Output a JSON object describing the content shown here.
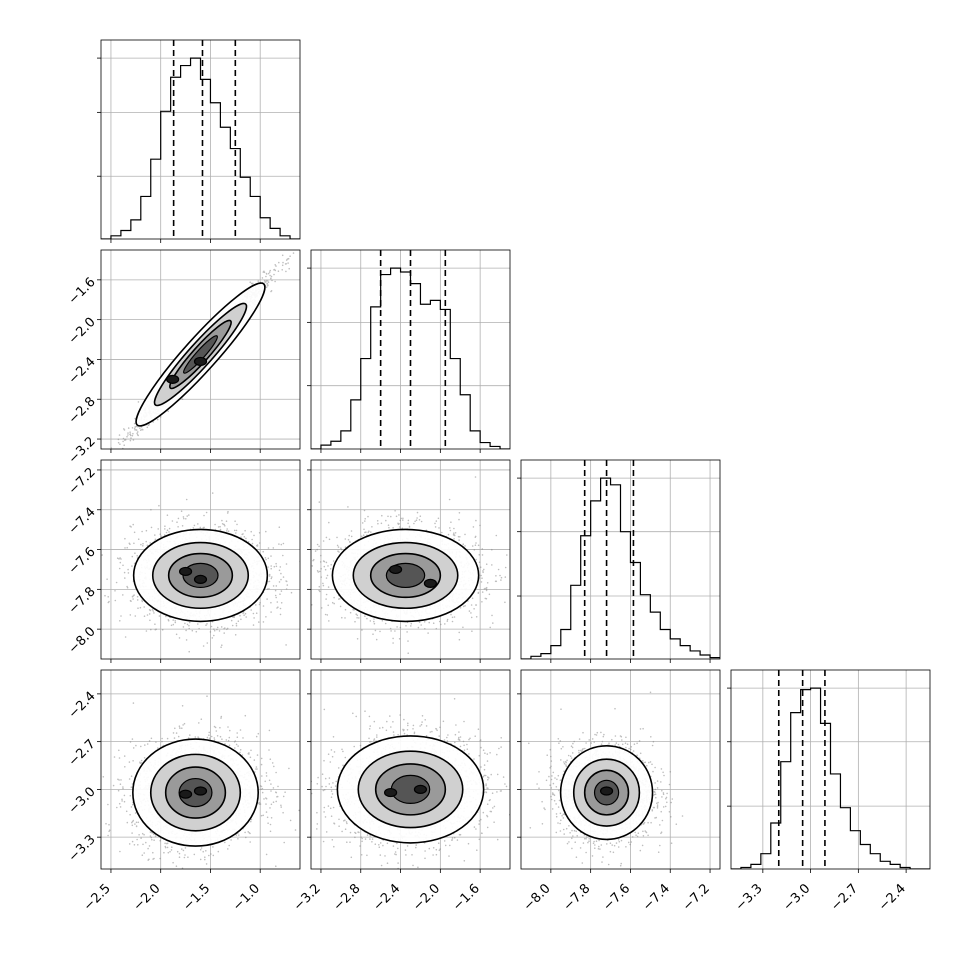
{
  "chart_data": {
    "type": "corner",
    "n_params": 4,
    "ranges": [
      [
        -2.6,
        -0.6
      ],
      [
        -3.3,
        -1.3
      ],
      [
        -8.15,
        -7.15
      ],
      [
        -3.5,
        -2.25
      ]
    ],
    "ticks": [
      [
        -2.5,
        -2.0,
        -1.5,
        -1.0
      ],
      [
        -3.2,
        -2.8,
        -2.4,
        -2.0,
        -1.6
      ],
      [
        -8.0,
        -7.8,
        -7.6,
        -7.4,
        -7.2
      ],
      [
        -3.3,
        -3.0,
        -2.7,
        -2.4
      ]
    ],
    "tick_labels": [
      [
        "−2.5",
        "−2.0",
        "−1.5",
        "−1.0"
      ],
      [
        "−3.2",
        "−2.8",
        "−2.4",
        "−2.0",
        "−1.6"
      ],
      [
        "−8.0",
        "−7.8",
        "−7.6",
        "−7.4",
        "−7.2"
      ],
      [
        "−3.3",
        "−3.0",
        "−2.7",
        "−2.4"
      ]
    ],
    "grid": true,
    "quantiles": [
      {
        "q16": -1.87,
        "q50": -1.58,
        "q84": -1.25
      },
      {
        "q16": -2.6,
        "q50": -2.3,
        "q84": -1.95
      },
      {
        "q16": -7.83,
        "q50": -7.72,
        "q84": -7.585
      },
      {
        "q16": -3.2,
        "q50": -3.05,
        "q84": -2.91
      }
    ],
    "histograms": [
      {
        "bin_edges": [
          -2.6,
          -2.5,
          -2.4,
          -2.3,
          -2.2,
          -2.1,
          -2.0,
          -1.9,
          -1.8,
          -1.7,
          -1.6,
          -1.5,
          -1.4,
          -1.3,
          -1.2,
          -1.1,
          -1.0,
          -0.9,
          -0.8,
          -0.7,
          -0.6
        ],
        "counts": [
          0,
          3,
          8,
          18,
          40,
          75,
          120,
          152,
          163,
          170,
          150,
          128,
          105,
          85,
          58,
          40,
          20,
          10,
          3,
          0
        ]
      },
      {
        "bin_edges": [
          -3.3,
          -3.2,
          -3.1,
          -3.0,
          -2.9,
          -2.8,
          -2.7,
          -2.6,
          -2.5,
          -2.4,
          -2.3,
          -2.2,
          -2.1,
          -2.0,
          -1.9,
          -1.8,
          -1.7,
          -1.6,
          -1.5,
          -1.4,
          -1.3
        ],
        "counts": [
          0,
          3,
          6,
          14,
          38,
          70,
          110,
          135,
          140,
          137,
          128,
          112,
          115,
          108,
          70,
          42,
          14,
          5,
          2,
          0
        ]
      },
      {
        "bin_edges": [
          -8.15,
          -8.1,
          -8.05,
          -8.0,
          -7.95,
          -7.9,
          -7.85,
          -7.8,
          -7.75,
          -7.7,
          -7.65,
          -7.6,
          -7.55,
          -7.5,
          -7.45,
          -7.4,
          -7.35,
          -7.3,
          -7.25,
          -7.2,
          -7.15
        ],
        "counts": [
          0,
          2,
          4,
          10,
          22,
          55,
          92,
          118,
          135,
          130,
          95,
          72,
          48,
          35,
          22,
          15,
          10,
          6,
          3,
          1
        ]
      },
      {
        "bin_edges": [
          -3.5,
          -3.4375,
          -3.375,
          -3.3125,
          -3.25,
          -3.1875,
          -3.125,
          -3.0625,
          -3.0,
          -2.9375,
          -2.875,
          -2.8125,
          -2.75,
          -2.6875,
          -2.625,
          -2.5625,
          -2.5,
          -2.4375,
          -2.375,
          -2.3125,
          -2.25
        ],
        "counts": [
          0,
          1,
          3,
          10,
          30,
          70,
          102,
          117,
          118,
          95,
          62,
          40,
          25,
          16,
          10,
          5,
          3,
          1,
          0,
          0
        ]
      }
    ],
    "pairs": [
      {
        "row": 1,
        "col": 0,
        "mean": [
          -1.6,
          -2.35
        ],
        "sd": [
          0.3,
          0.34
        ],
        "corr": 0.985,
        "modes": [
          [
            -1.88,
            -2.6
          ],
          [
            -1.6,
            -2.42
          ]
        ]
      },
      {
        "row": 2,
        "col": 0,
        "mean": [
          -1.6,
          -7.73
        ],
        "sd": [
          0.32,
          0.11
        ],
        "corr": 0.0,
        "modes": [
          [
            -1.6,
            -7.75
          ],
          [
            -1.75,
            -7.71
          ]
        ]
      },
      {
        "row": 2,
        "col": 1,
        "mean": [
          -2.35,
          -7.73
        ],
        "sd": [
          0.35,
          0.11
        ],
        "corr": 0.0,
        "modes": [
          [
            -2.45,
            -7.7
          ],
          [
            -2.1,
            -7.77
          ]
        ]
      },
      {
        "row": 3,
        "col": 0,
        "mean": [
          -1.65,
          -3.02
        ],
        "sd": [
          0.3,
          0.16
        ],
        "corr": 0.1,
        "modes": [
          [
            -1.6,
            -3.01
          ],
          [
            -1.75,
            -3.03
          ]
        ]
      },
      {
        "row": 3,
        "col": 1,
        "mean": [
          -2.3,
          -3.0
        ],
        "sd": [
          0.35,
          0.16
        ],
        "corr": 0.08,
        "modes": [
          [
            -2.5,
            -3.02
          ],
          [
            -2.2,
            -3.0
          ]
        ]
      },
      {
        "row": 3,
        "col": 2,
        "mean": [
          -7.72,
          -3.02
        ],
        "sd": [
          0.11,
          0.14
        ],
        "corr": 0.0,
        "modes": [
          [
            -7.72,
            -3.01
          ]
        ]
      }
    ]
  }
}
